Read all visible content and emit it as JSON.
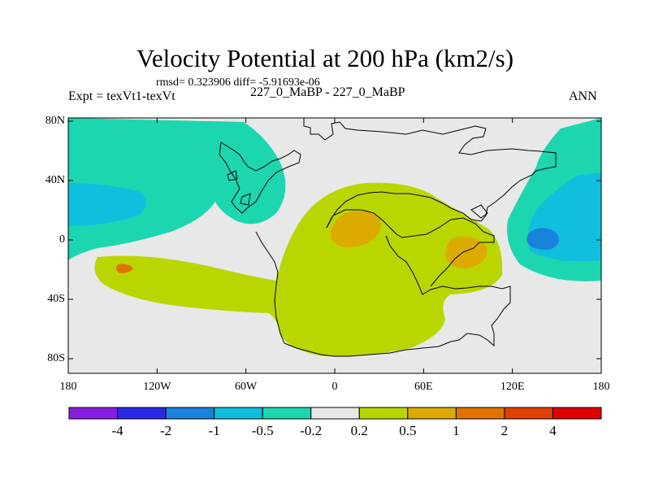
{
  "title": "Velocity Potential at 200 hPa (km2/s)",
  "stats": "rmsd= 0.323906 diff= -5.91693e-06",
  "expt": "Expt = texVt1-texVt",
  "case": "227_0_MaBP - 227_0_MaBP",
  "season": "ANN",
  "lat_ticks": [
    "80N",
    "40N",
    "0",
    "40S",
    "80S"
  ],
  "lon_ticks": [
    "180",
    "120W",
    "60W",
    "0",
    "60E",
    "120E",
    "180"
  ],
  "colorbar": {
    "colors": [
      "#8a1ee0",
      "#2a2ae6",
      "#1a82dc",
      "#10bede",
      "#1cd6b0",
      "#e8e8e8",
      "#bad600",
      "#dcaa00",
      "#e07200",
      "#e04000",
      "#e00000"
    ],
    "labels": [
      "-4",
      "-2",
      "-1",
      "-0.5",
      "-0.2",
      "0.2",
      "0.5",
      "1",
      "2",
      "4"
    ]
  },
  "map_colors": {
    "background": "#e8e8e8",
    "neg_weak": "#1cd6b0",
    "neg_mod": "#10bede",
    "neg_strong": "#1a82dc",
    "pos_weak": "#bad600",
    "pos_mod": "#dcaa00",
    "pos_strong": "#e07200"
  }
}
